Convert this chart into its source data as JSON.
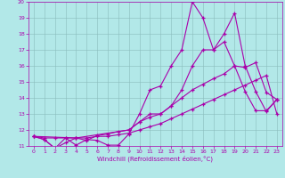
{
  "xlabel": "Windchill (Refroidissement éolien,°C)",
  "xlim": [
    -0.5,
    23.5
  ],
  "ylim": [
    11,
    20
  ],
  "xticks": [
    0,
    1,
    2,
    3,
    4,
    5,
    6,
    7,
    8,
    9,
    10,
    11,
    12,
    13,
    14,
    15,
    16,
    17,
    18,
    19,
    20,
    21,
    22,
    23
  ],
  "yticks": [
    11,
    12,
    13,
    14,
    15,
    16,
    17,
    18,
    19,
    20
  ],
  "background_color": "#b2e8e8",
  "grid_color": "#8abcbc",
  "line_color": "#aa00aa",
  "series": [
    {
      "x": [
        0,
        1,
        2,
        3,
        4,
        5,
        6,
        7,
        8,
        9,
        10,
        11,
        12,
        13,
        14,
        15,
        16,
        17,
        18,
        19,
        20,
        21,
        22,
        23
      ],
      "y": [
        11.6,
        11.4,
        10.85,
        11.5,
        11.05,
        11.4,
        11.35,
        11.05,
        11.05,
        11.75,
        13.0,
        14.5,
        14.75,
        16.0,
        17.0,
        20.0,
        19.0,
        17.0,
        17.5,
        16.0,
        14.4,
        13.2,
        13.2,
        13.9
      ]
    },
    {
      "x": [
        0,
        1,
        2,
        3,
        4,
        5,
        6,
        7,
        8,
        9,
        10,
        11,
        12,
        13,
        14,
        15,
        16,
        17,
        18,
        19,
        20,
        21,
        22,
        23
      ],
      "y": [
        11.6,
        11.4,
        10.85,
        11.2,
        11.5,
        11.35,
        11.65,
        11.75,
        11.9,
        12.0,
        12.5,
        13.0,
        13.0,
        13.5,
        14.0,
        14.5,
        14.85,
        15.2,
        15.5,
        16.0,
        15.9,
        16.2,
        14.35,
        13.9
      ]
    },
    {
      "x": [
        0,
        4,
        9,
        10,
        11,
        12,
        13,
        14,
        15,
        16,
        17,
        18,
        19,
        20,
        21,
        22,
        23
      ],
      "y": [
        11.6,
        11.5,
        12.0,
        12.5,
        12.8,
        13.0,
        13.5,
        14.5,
        16.0,
        17.0,
        17.0,
        18.0,
        19.3,
        16.0,
        14.4,
        13.15,
        13.9
      ]
    },
    {
      "x": [
        0,
        1,
        2,
        3,
        4,
        5,
        6,
        7,
        8,
        9,
        10,
        11,
        12,
        13,
        14,
        15,
        16,
        17,
        18,
        19,
        20,
        21,
        22,
        23
      ],
      "y": [
        11.6,
        11.5,
        11.5,
        11.5,
        11.5,
        11.5,
        11.6,
        11.6,
        11.7,
        11.8,
        12.0,
        12.2,
        12.4,
        12.7,
        13.0,
        13.3,
        13.6,
        13.9,
        14.2,
        14.5,
        14.8,
        15.1,
        15.4,
        13.0
      ]
    }
  ]
}
